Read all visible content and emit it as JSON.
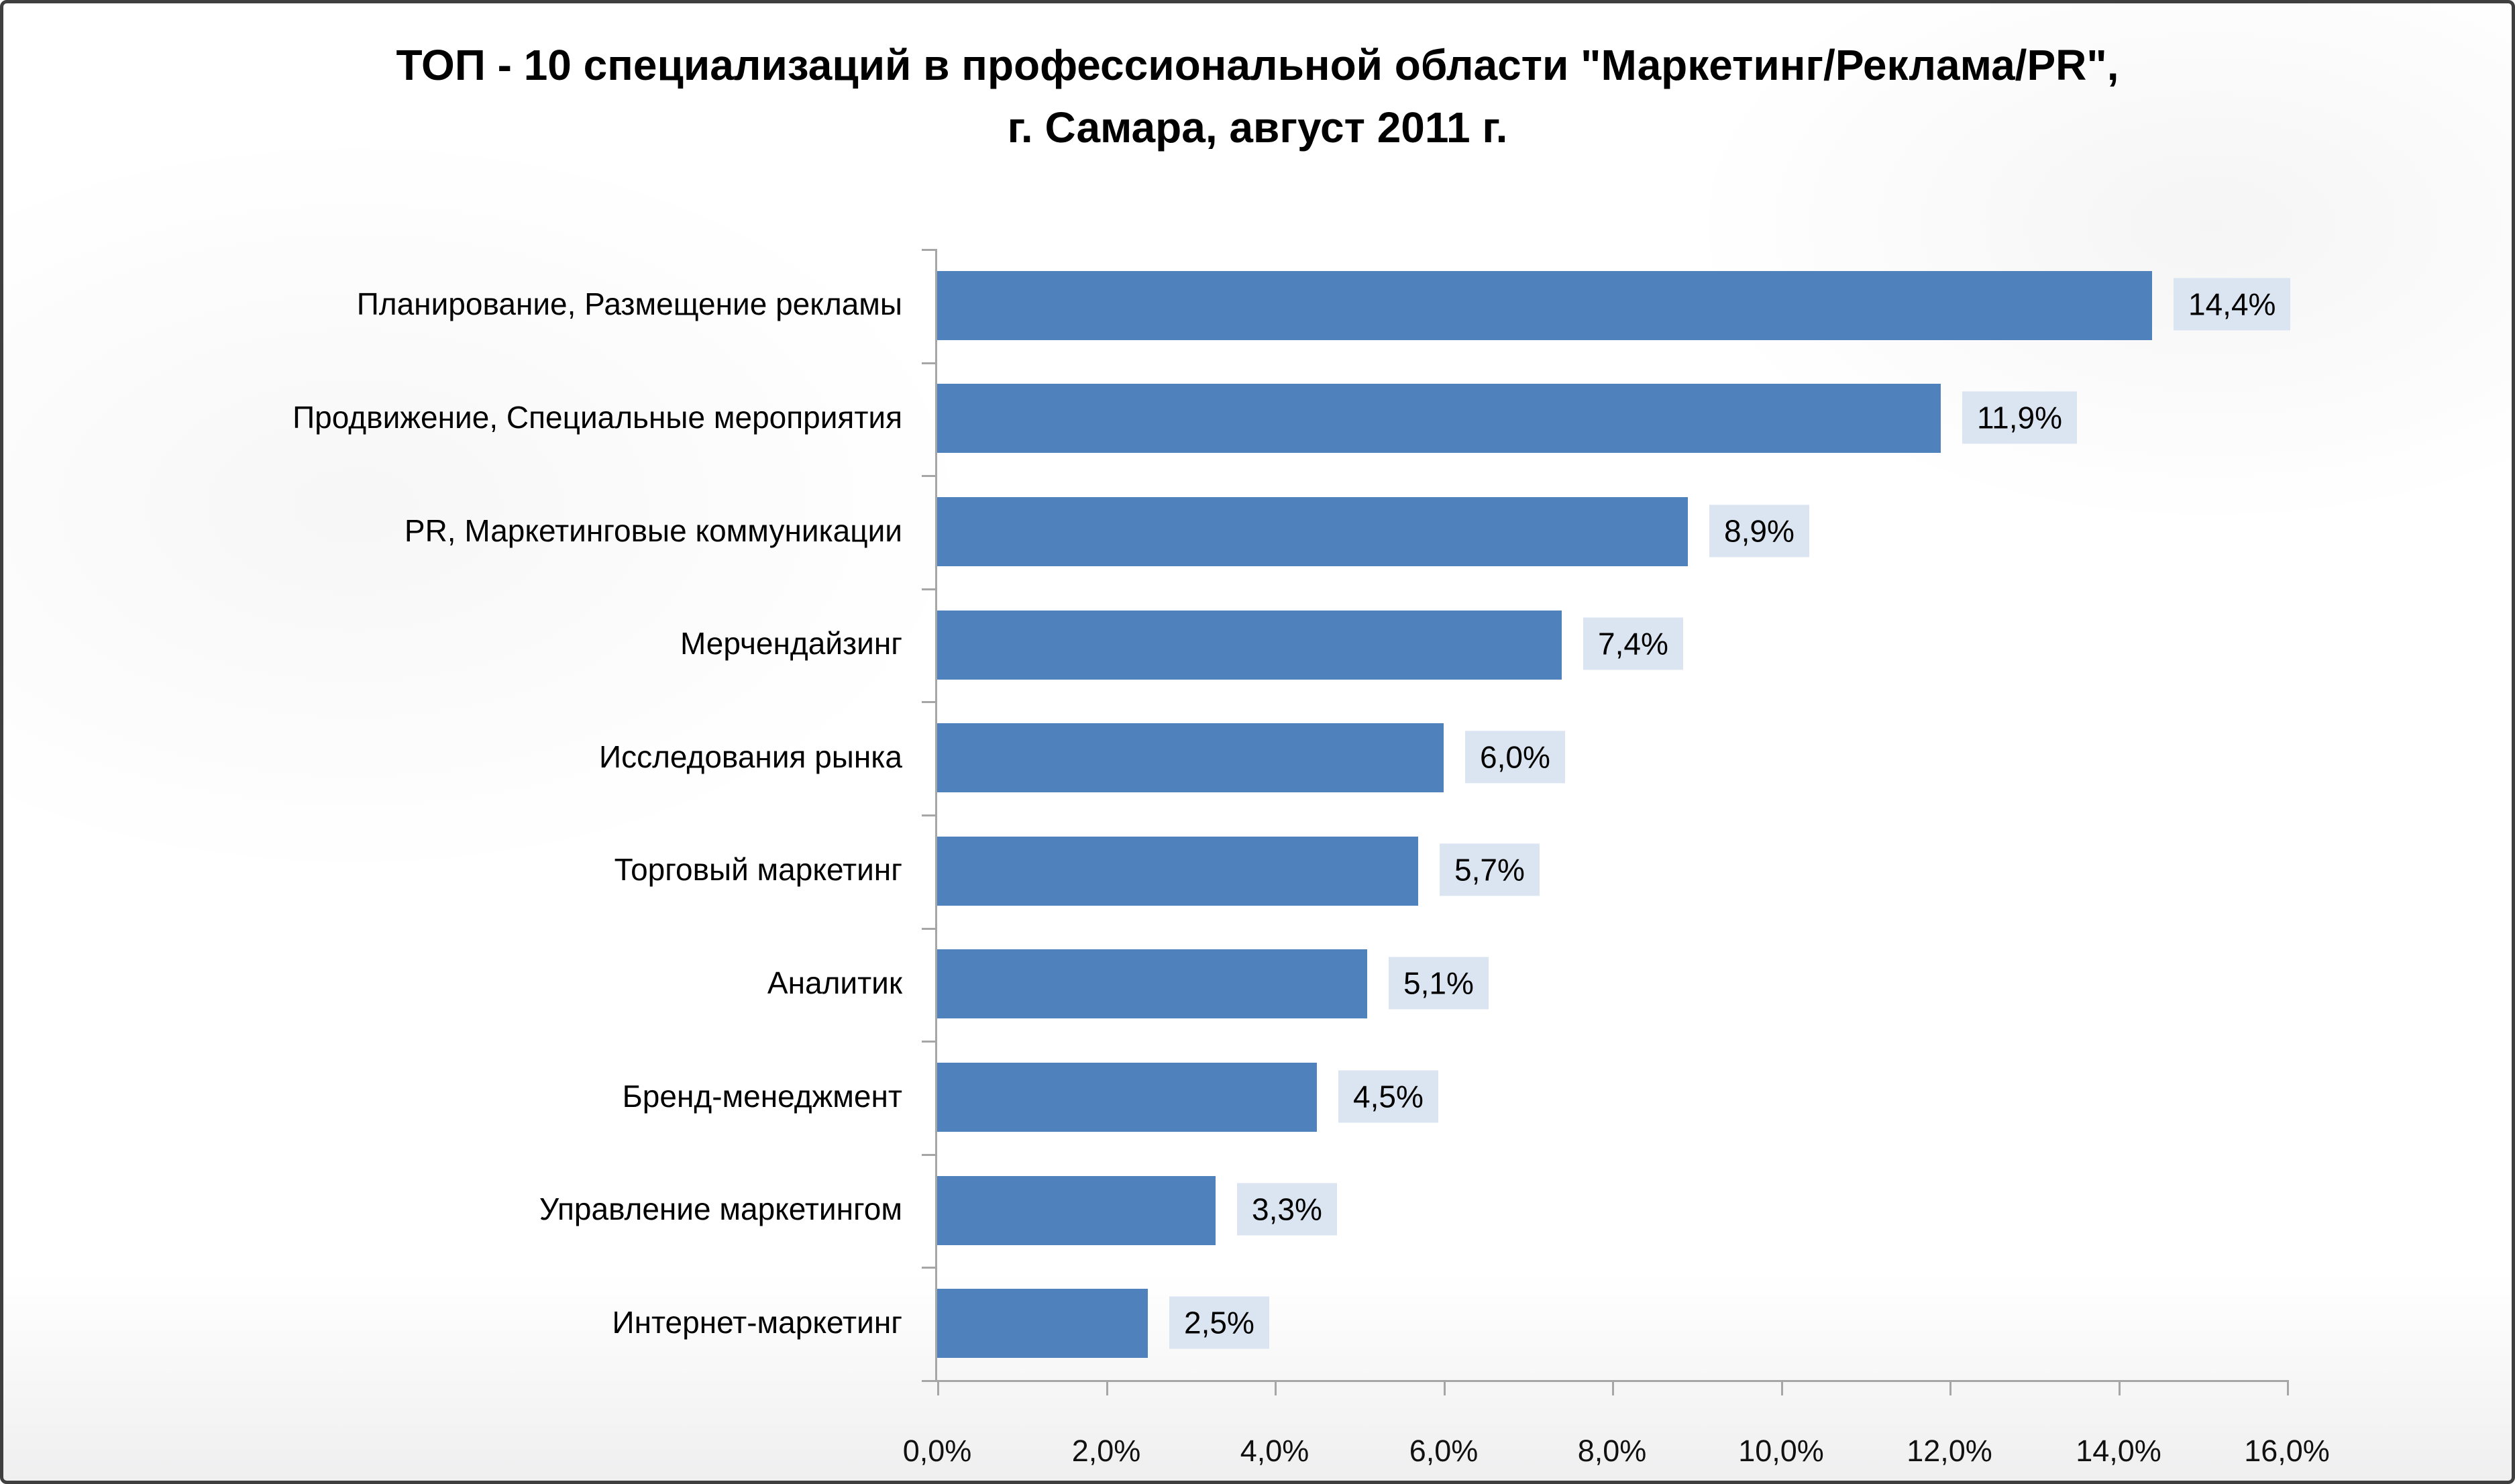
{
  "title": {
    "line1": "ТОП - 10 специализаций в профессиональной области \"Маркетинг/Реклама/PR\",",
    "line2": "г. Самара, август 2011 г."
  },
  "colors": {
    "bar": "#4f81bd",
    "value_label_bg": "#dbe5f1",
    "axis": "#a6a6a6",
    "frame_border": "#3f3f3f"
  },
  "chart_data": {
    "type": "bar",
    "orientation": "horizontal",
    "title": "ТОП - 10 специализаций в профессиональной области \"Маркетинг/Реклама/PR\", г. Самара, август 2011 г.",
    "categories": [
      "Планирование, Размещение рекламы",
      "Продвижение, Специальные мероприятия",
      "PR, Маркетинговые коммуникации",
      "Мерчендайзинг",
      "Исследования рынка",
      "Торговый маркетинг",
      "Аналитик",
      "Бренд-менеджмент",
      "Управление маркетингом",
      "Интернет-маркетинг"
    ],
    "values": [
      14.4,
      11.9,
      8.9,
      7.4,
      6.0,
      5.7,
      5.1,
      4.5,
      3.3,
      2.5
    ],
    "value_labels": [
      "14,4%",
      "11,9%",
      "8,9%",
      "7,4%",
      "6,0%",
      "5,7%",
      "5,1%",
      "4,5%",
      "3,3%",
      "2,5%"
    ],
    "xlabel": "",
    "ylabel": "",
    "xlim": [
      0,
      16
    ],
    "x_tick_step": 2,
    "x_tick_labels": [
      "0,0%",
      "2,0%",
      "4,0%",
      "6,0%",
      "8,0%",
      "10,0%",
      "12,0%",
      "14,0%",
      "16,0%"
    ],
    "grid": false,
    "legend": "none",
    "data_labels_shown": true
  }
}
